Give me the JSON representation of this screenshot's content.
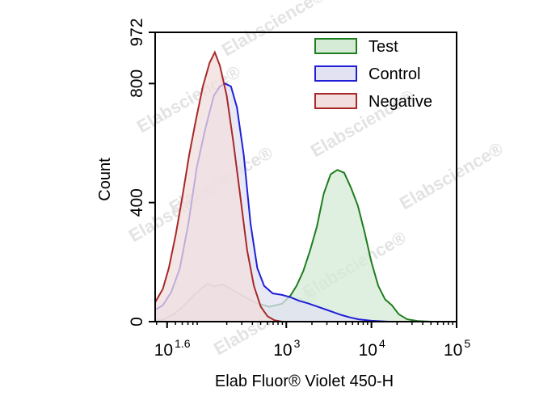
{
  "chart_data": {
    "type": "area",
    "xlabel": "Elab Fluor® Violet 450-H",
    "ylabel": "Count",
    "x_scale": "log",
    "xlim_log10": [
      1.46,
      5.0
    ],
    "ylim": [
      0,
      972
    ],
    "y_ticks": [
      {
        "value": 0,
        "label": "0"
      },
      {
        "value": 400,
        "label": "400"
      },
      {
        "value": 800,
        "label": "800"
      },
      {
        "value": 972,
        "label": "972"
      }
    ],
    "x_ticks": [
      {
        "log10": 1.6,
        "base": "10",
        "exp": "1.6"
      },
      {
        "log10": 3,
        "base": "10",
        "exp": "3"
      },
      {
        "log10": 4,
        "base": "10",
        "exp": "4"
      },
      {
        "log10": 5,
        "base": "10",
        "exp": "5"
      }
    ],
    "legend": {
      "position": "top-right"
    },
    "watermark": "Elabscience®",
    "series": [
      {
        "name": "Test",
        "stroke": "#1e7d1e",
        "fill": "#d6ebd6",
        "points": [
          [
            1.46,
            3
          ],
          [
            1.55,
            6
          ],
          [
            1.68,
            25
          ],
          [
            1.8,
            55
          ],
          [
            1.9,
            85
          ],
          [
            2.0,
            110
          ],
          [
            2.08,
            128
          ],
          [
            2.15,
            118
          ],
          [
            2.25,
            125
          ],
          [
            2.35,
            110
          ],
          [
            2.5,
            85
          ],
          [
            2.65,
            62
          ],
          [
            2.8,
            50
          ],
          [
            2.95,
            60
          ],
          [
            3.05,
            88
          ],
          [
            3.12,
            120
          ],
          [
            3.2,
            170
          ],
          [
            3.28,
            240
          ],
          [
            3.36,
            320
          ],
          [
            3.44,
            430
          ],
          [
            3.52,
            495
          ],
          [
            3.6,
            510
          ],
          [
            3.68,
            500
          ],
          [
            3.76,
            450
          ],
          [
            3.84,
            390
          ],
          [
            3.92,
            300
          ],
          [
            4.0,
            200
          ],
          [
            4.08,
            120
          ],
          [
            4.16,
            75
          ],
          [
            4.24,
            55
          ],
          [
            4.32,
            25
          ],
          [
            4.42,
            8
          ],
          [
            4.55,
            2
          ],
          [
            4.7,
            0
          ]
        ]
      },
      {
        "name": "Control",
        "stroke": "#1f1fd8",
        "fill": "#e2e2f3",
        "points": [
          [
            1.46,
            40
          ],
          [
            1.55,
            55
          ],
          [
            1.65,
            100
          ],
          [
            1.75,
            180
          ],
          [
            1.85,
            330
          ],
          [
            1.95,
            520
          ],
          [
            2.05,
            650
          ],
          [
            2.15,
            760
          ],
          [
            2.22,
            790
          ],
          [
            2.28,
            800
          ],
          [
            2.35,
            790
          ],
          [
            2.42,
            720
          ],
          [
            2.5,
            560
          ],
          [
            2.58,
            330
          ],
          [
            2.66,
            180
          ],
          [
            2.74,
            120
          ],
          [
            2.84,
            95
          ],
          [
            2.95,
            90
          ],
          [
            3.05,
            82
          ],
          [
            3.15,
            70
          ],
          [
            3.25,
            62
          ],
          [
            3.35,
            52
          ],
          [
            3.45,
            42
          ],
          [
            3.55,
            32
          ],
          [
            3.65,
            22
          ],
          [
            3.75,
            14
          ],
          [
            3.85,
            8
          ],
          [
            4.0,
            3
          ],
          [
            4.2,
            0
          ]
        ]
      },
      {
        "name": "Negative",
        "stroke": "#a82828",
        "fill": "#f2dede",
        "points": [
          [
            1.46,
            65
          ],
          [
            1.55,
            110
          ],
          [
            1.62,
            180
          ],
          [
            1.7,
            290
          ],
          [
            1.78,
            420
          ],
          [
            1.86,
            560
          ],
          [
            1.94,
            680
          ],
          [
            2.02,
            790
          ],
          [
            2.1,
            870
          ],
          [
            2.16,
            905
          ],
          [
            2.22,
            860
          ],
          [
            2.3,
            760
          ],
          [
            2.38,
            600
          ],
          [
            2.46,
            420
          ],
          [
            2.54,
            240
          ],
          [
            2.62,
            120
          ],
          [
            2.7,
            50
          ],
          [
            2.78,
            18
          ],
          [
            2.86,
            5
          ],
          [
            2.95,
            0
          ]
        ]
      }
    ]
  }
}
